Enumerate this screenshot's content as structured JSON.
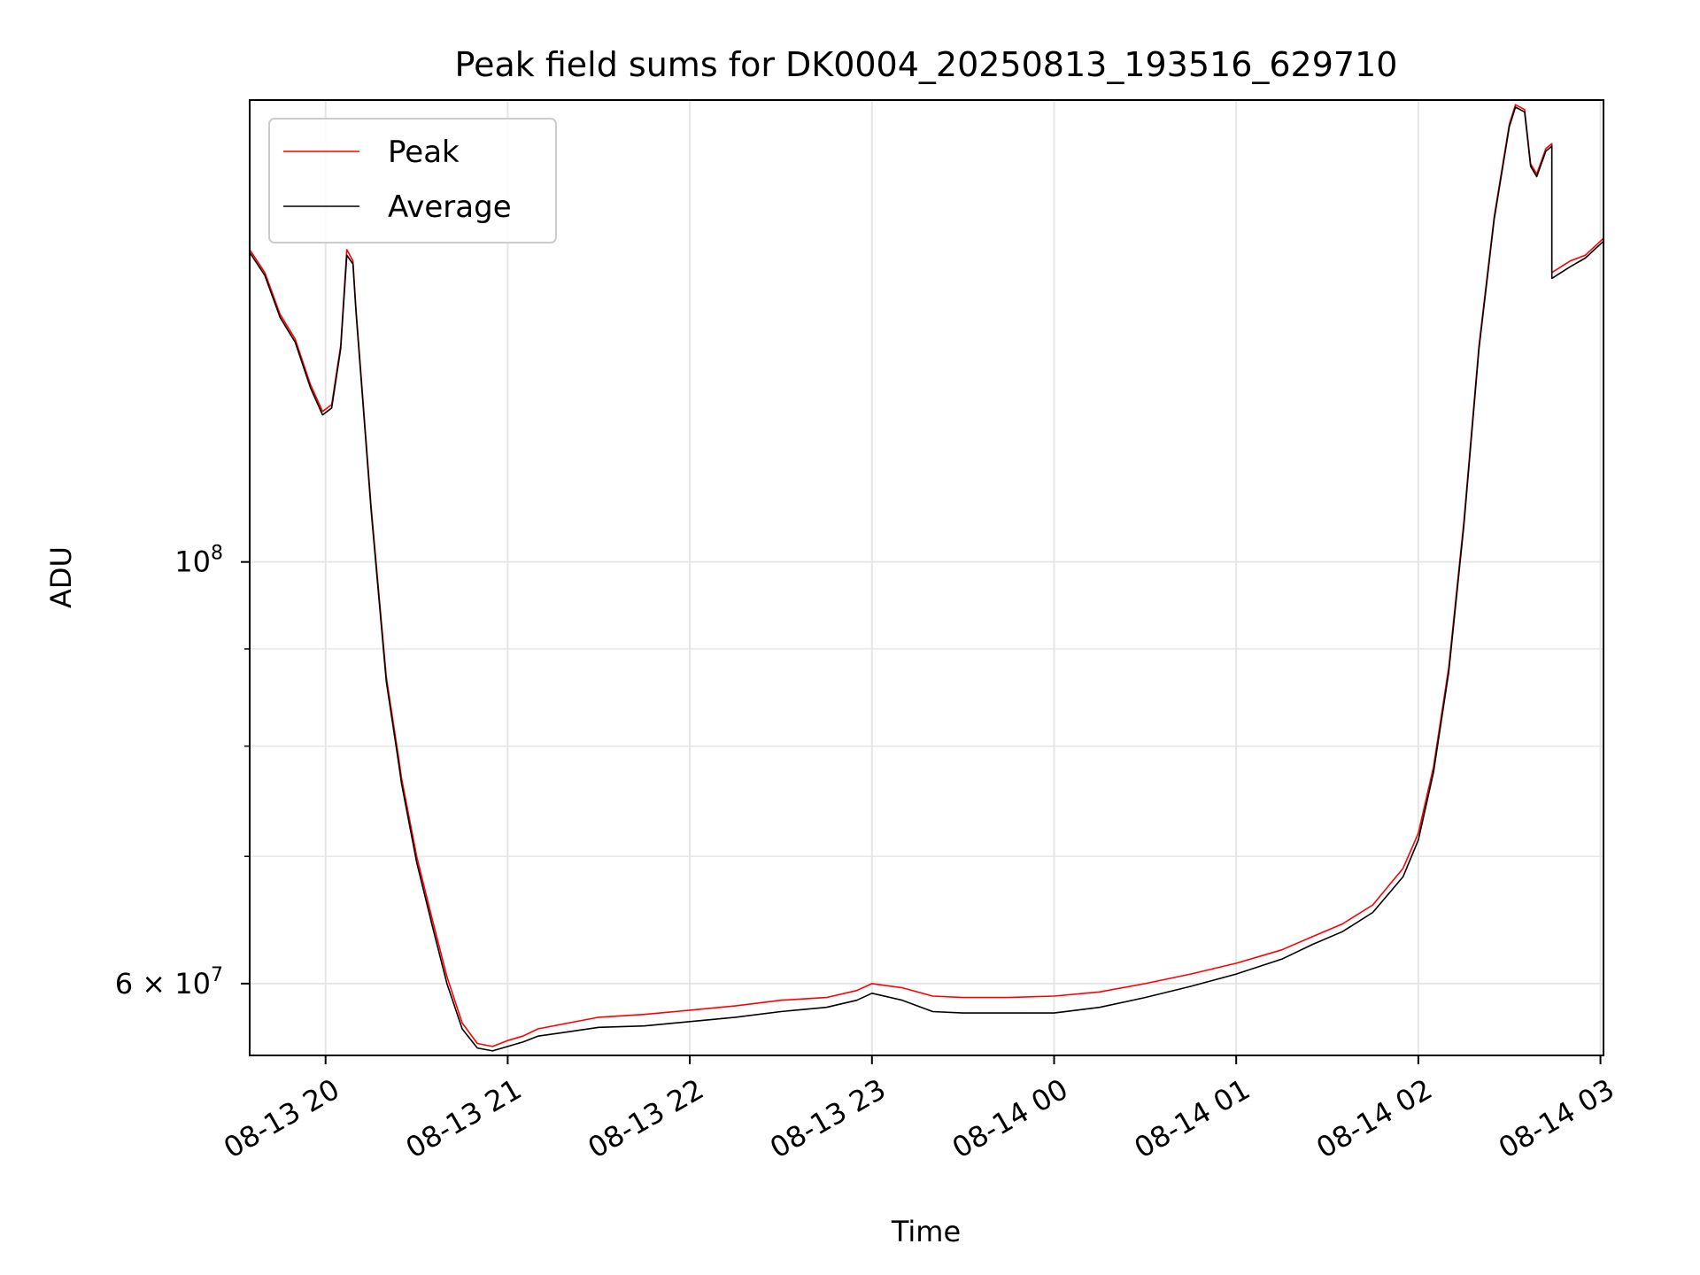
{
  "chart_data": {
    "type": "line",
    "title": "Peak field sums for DK0004_20250813_193516_629710",
    "xlabel": "Time",
    "ylabel": "ADU",
    "xlim": [
      "2025-08-13 19:35",
      "2025-08-14 03:01"
    ],
    "ylim": [
      55000000,
      175000000
    ],
    "yscale": "log",
    "grid": true,
    "legend_position": "top-left",
    "x_tick_labels": [
      "08-13 20",
      "08-13 21",
      "08-13 22",
      "08-13 23",
      "08-14 00",
      "08-14 01",
      "08-14 02",
      "08-14 03"
    ],
    "x_ticks": [
      "2025-08-13 20:00",
      "2025-08-13 21:00",
      "2025-08-13 22:00",
      "2025-08-13 23:00",
      "2025-08-14 00:00",
      "2025-08-14 01:00",
      "2025-08-14 02:00",
      "2025-08-14 03:00"
    ],
    "y_tick_labels": [
      "10^8",
      "6 × 10^7"
    ],
    "y_ticks": [
      100000000,
      60000000
    ],
    "y_minor_ticks": [
      70000000,
      80000000,
      90000000
    ],
    "series": [
      {
        "name": "Peak",
        "color": "#ff0000",
        "x": [
          "2025-08-13 19:35",
          "2025-08-13 19:40",
          "2025-08-13 19:45",
          "2025-08-13 19:50",
          "2025-08-13 19:55",
          "2025-08-13 19:59",
          "2025-08-13 20:02",
          "2025-08-13 20:05",
          "2025-08-13 20:07",
          "2025-08-13 20:09",
          "2025-08-13 20:10",
          "2025-08-13 20:15",
          "2025-08-13 20:20",
          "2025-08-13 20:24",
          "2025-08-13 20:25",
          "2025-08-13 20:30",
          "2025-08-13 20:35",
          "2025-08-13 20:40",
          "2025-08-13 20:45",
          "2025-08-13 20:50",
          "2025-08-13 20:55",
          "2025-08-13 21:00",
          "2025-08-13 21:05",
          "2025-08-13 21:10",
          "2025-08-13 21:20",
          "2025-08-13 21:30",
          "2025-08-13 21:45",
          "2025-08-13 22:00",
          "2025-08-13 22:15",
          "2025-08-13 22:30",
          "2025-08-13 22:45",
          "2025-08-13 22:55",
          "2025-08-13 23:00",
          "2025-08-13 23:10",
          "2025-08-13 23:20",
          "2025-08-13 23:30",
          "2025-08-13 23:45",
          "2025-08-14 00:00",
          "2025-08-14 00:15",
          "2025-08-14 00:30",
          "2025-08-14 00:45",
          "2025-08-14 01:00",
          "2025-08-14 01:15",
          "2025-08-14 01:25",
          "2025-08-14 01:35",
          "2025-08-14 01:45",
          "2025-08-14 01:55",
          "2025-08-14 02:00",
          "2025-08-14 02:05",
          "2025-08-14 02:10",
          "2025-08-14 02:15",
          "2025-08-14 02:20",
          "2025-08-14 02:25",
          "2025-08-14 02:30",
          "2025-08-14 02:32",
          "2025-08-14 02:35",
          "2025-08-14 02:37",
          "2025-08-14 02:39",
          "2025-08-14 02:42",
          "2025-08-14 02:44",
          "2025-08-14 02:44",
          "2025-08-14 02:50",
          "2025-08-14 02:55",
          "2025-08-14 03:01"
        ],
        "y": [
          146000000,
          142000000,
          135000000,
          131000000,
          124000000,
          120000000,
          121000000,
          130000000,
          146000000,
          144000000,
          136000000,
          107000000,
          87000000,
          79000000,
          77000000,
          70000000,
          65000000,
          60500000,
          57200000,
          55800000,
          55600000,
          56000000,
          56300000,
          56800000,
          57200000,
          57600000,
          57800000,
          58100000,
          58400000,
          58800000,
          59000000,
          59500000,
          60000000,
          59700000,
          59100000,
          59000000,
          59000000,
          59100000,
          59400000,
          60000000,
          60700000,
          61500000,
          62500000,
          63500000,
          64500000,
          66000000,
          69000000,
          72000000,
          78000000,
          88000000,
          105000000,
          130000000,
          152000000,
          170000000,
          174000000,
          173000000,
          162000000,
          160000000,
          165000000,
          166000000,
          142000000,
          144000000,
          145000000,
          148000000
        ]
      },
      {
        "name": "Average",
        "color": "#000000",
        "x": [
          "2025-08-13 19:35",
          "2025-08-13 19:40",
          "2025-08-13 19:45",
          "2025-08-13 19:50",
          "2025-08-13 19:55",
          "2025-08-13 19:59",
          "2025-08-13 20:02",
          "2025-08-13 20:05",
          "2025-08-13 20:07",
          "2025-08-13 20:09",
          "2025-08-13 20:10",
          "2025-08-13 20:15",
          "2025-08-13 20:20",
          "2025-08-13 20:24",
          "2025-08-13 20:25",
          "2025-08-13 20:30",
          "2025-08-13 20:35",
          "2025-08-13 20:40",
          "2025-08-13 20:45",
          "2025-08-13 20:50",
          "2025-08-13 20:55",
          "2025-08-13 21:00",
          "2025-08-13 21:05",
          "2025-08-13 21:10",
          "2025-08-13 21:20",
          "2025-08-13 21:30",
          "2025-08-13 21:45",
          "2025-08-13 22:00",
          "2025-08-13 22:15",
          "2025-08-13 22:30",
          "2025-08-13 22:45",
          "2025-08-13 22:55",
          "2025-08-13 23:00",
          "2025-08-13 23:10",
          "2025-08-13 23:20",
          "2025-08-13 23:30",
          "2025-08-13 23:45",
          "2025-08-14 00:00",
          "2025-08-14 00:15",
          "2025-08-14 00:30",
          "2025-08-14 00:45",
          "2025-08-14 01:00",
          "2025-08-14 01:15",
          "2025-08-14 01:25",
          "2025-08-14 01:35",
          "2025-08-14 01:45",
          "2025-08-14 01:55",
          "2025-08-14 02:00",
          "2025-08-14 02:05",
          "2025-08-14 02:10",
          "2025-08-14 02:15",
          "2025-08-14 02:20",
          "2025-08-14 02:25",
          "2025-08-14 02:30",
          "2025-08-14 02:32",
          "2025-08-14 02:35",
          "2025-08-14 02:37",
          "2025-08-14 02:39",
          "2025-08-14 02:42",
          "2025-08-14 02:44",
          "2025-08-14 02:44",
          "2025-08-14 02:50",
          "2025-08-14 02:55",
          "2025-08-14 03:01"
        ],
        "y": [
          145500000,
          141500000,
          134500000,
          130500000,
          123500000,
          119500000,
          120500000,
          129500000,
          145000000,
          143500000,
          135500000,
          106500000,
          86500000,
          78500000,
          76500000,
          69500000,
          64500000,
          60000000,
          56800000,
          55500000,
          55300000,
          55600000,
          55900000,
          56300000,
          56600000,
          56900000,
          57000000,
          57300000,
          57600000,
          58000000,
          58300000,
          58800000,
          59300000,
          58800000,
          58000000,
          57900000,
          57900000,
          57900000,
          58300000,
          59000000,
          59800000,
          60700000,
          61800000,
          62900000,
          63900000,
          65400000,
          68300000,
          71400000,
          77500000,
          87500000,
          104500000,
          129500000,
          151500000,
          169500000,
          173500000,
          172500000,
          161500000,
          159500000,
          164500000,
          165500000,
          141000000,
          143000000,
          144500000,
          147500000
        ]
      }
    ]
  },
  "legend": {
    "peak_label": "Peak",
    "average_label": "Average"
  }
}
